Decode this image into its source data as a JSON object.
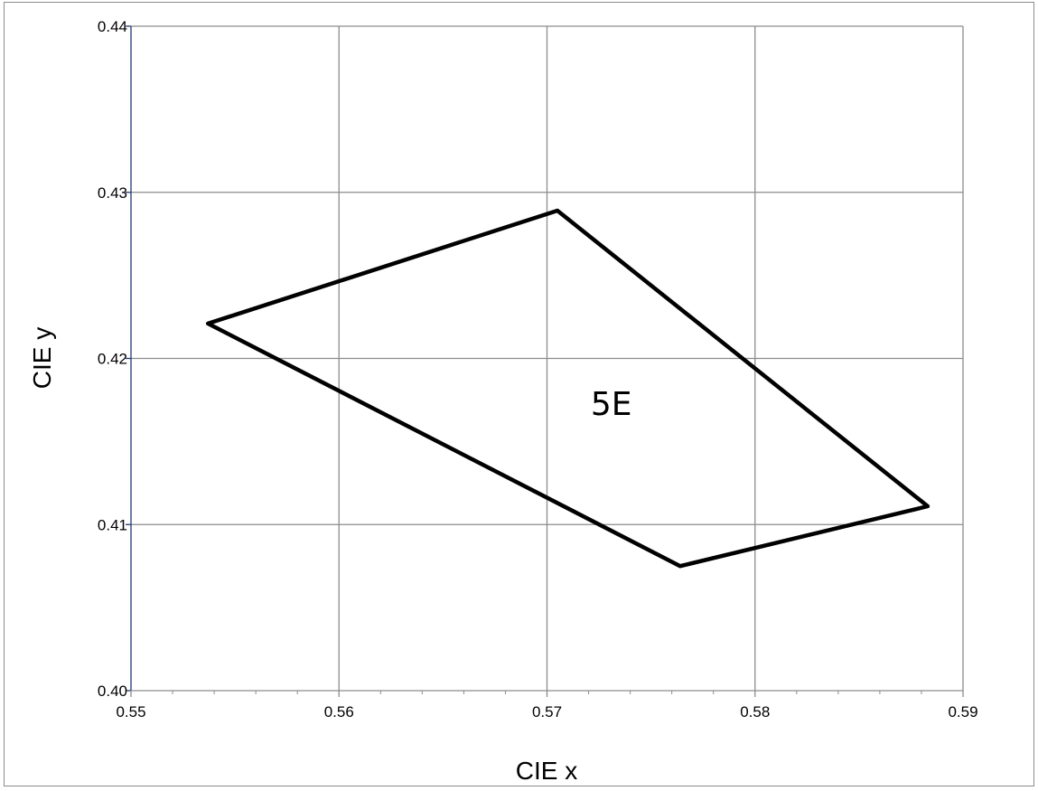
{
  "chart_data": {
    "type": "line",
    "xlabel": "CIE x",
    "ylabel": "CIE y",
    "xlim": [
      0.55,
      0.59
    ],
    "ylim": [
      0.4,
      0.44
    ],
    "x_ticks": [
      "0.55",
      "0.56",
      "0.57",
      "0.58",
      "0.59"
    ],
    "y_ticks": [
      "0.40",
      "0.41",
      "0.42",
      "0.43",
      "0.44"
    ],
    "x_tick_values": [
      0.55,
      0.56,
      0.57,
      0.58,
      0.59
    ],
    "y_tick_values": [
      0.4,
      0.41,
      0.42,
      0.43,
      0.44
    ],
    "x_minor_divisions": 5,
    "grid": true,
    "series": [
      {
        "closed": true,
        "color": "#000000",
        "x": [
          0.5537,
          0.5705,
          0.5764,
          0.5883
        ],
        "y": [
          0.4221,
          0.4289,
          0.4075,
          0.4111
        ],
        "order": [
          0,
          1,
          3,
          2
        ]
      }
    ],
    "annotations": [
      {
        "text": "5E",
        "x": 0.5721,
        "y": 0.4177
      }
    ],
    "colors": {
      "grid": "#8c8c8c",
      "axis": "#1f3b6f",
      "series": "#000000",
      "frame": "#8c8c8c"
    }
  }
}
